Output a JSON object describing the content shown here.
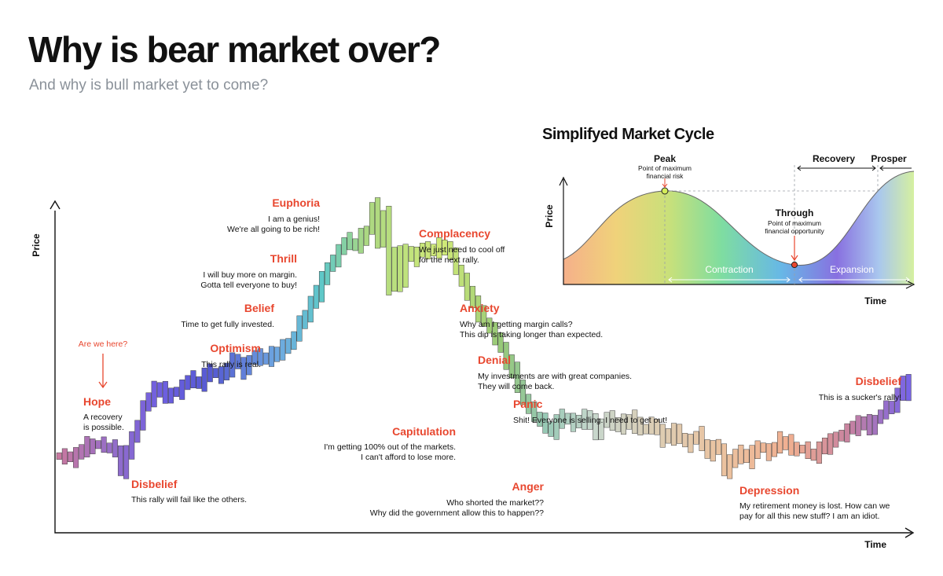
{
  "header": {
    "title": "Why is bear market over?",
    "subtitle": "And why is bull market yet to come?"
  },
  "colors": {
    "accent": "#e8472f",
    "axis": "#111111",
    "subtitle": "#8a9199"
  },
  "chart_data": [
    {
      "type": "bar",
      "style": "candlestick-like gradient bars",
      "xlabel": "Time",
      "ylabel": "Price",
      "grid": false,
      "series_profile": [
        [
          0,
          0.1
        ],
        [
          2,
          0.09
        ],
        [
          4,
          0.12
        ],
        [
          6,
          0.14
        ],
        [
          8,
          0.13
        ],
        [
          10,
          0.12
        ],
        [
          11,
          0.05
        ],
        [
          13,
          0.16
        ],
        [
          15,
          0.27
        ],
        [
          17,
          0.34
        ],
        [
          19,
          0.31
        ],
        [
          21,
          0.33
        ],
        [
          23,
          0.37
        ],
        [
          25,
          0.36
        ],
        [
          27,
          0.4
        ],
        [
          29,
          0.38
        ],
        [
          31,
          0.44
        ],
        [
          33,
          0.41
        ],
        [
          35,
          0.46
        ],
        [
          37,
          0.44
        ],
        [
          39,
          0.47
        ],
        [
          41,
          0.49
        ],
        [
          43,
          0.57
        ],
        [
          45,
          0.64
        ],
        [
          47,
          0.73
        ],
        [
          49,
          0.8
        ],
        [
          51,
          0.86
        ],
        [
          53,
          0.85
        ],
        [
          55,
          0.9
        ],
        [
          56,
          0.99
        ],
        [
          57,
          0.86
        ],
        [
          58,
          0.96
        ],
        [
          59,
          0.7
        ],
        [
          60,
          0.82
        ],
        [
          61,
          0.72
        ],
        [
          62,
          0.83
        ],
        [
          63,
          0.8
        ],
        [
          65,
          0.84
        ],
        [
          67,
          0.83
        ],
        [
          69,
          0.85
        ],
        [
          70,
          0.81
        ],
        [
          72,
          0.72
        ],
        [
          74,
          0.64
        ],
        [
          76,
          0.58
        ],
        [
          78,
          0.52
        ],
        [
          80,
          0.44
        ],
        [
          82,
          0.35
        ],
        [
          84,
          0.26
        ],
        [
          86,
          0.22
        ],
        [
          88,
          0.19
        ],
        [
          90,
          0.24
        ],
        [
          92,
          0.21
        ],
        [
          94,
          0.24
        ],
        [
          96,
          0.18
        ],
        [
          98,
          0.24
        ],
        [
          100,
          0.2
        ],
        [
          102,
          0.23
        ],
        [
          104,
          0.19
        ],
        [
          106,
          0.21
        ],
        [
          108,
          0.16
        ],
        [
          110,
          0.19
        ],
        [
          112,
          0.14
        ],
        [
          114,
          0.17
        ],
        [
          116,
          0.11
        ],
        [
          118,
          0.13
        ],
        [
          119,
          0.04
        ],
        [
          121,
          0.11
        ],
        [
          123,
          0.09
        ],
        [
          125,
          0.13
        ],
        [
          127,
          0.11
        ],
        [
          129,
          0.15
        ],
        [
          131,
          0.13
        ],
        [
          133,
          0.12
        ],
        [
          135,
          0.1
        ],
        [
          137,
          0.14
        ],
        [
          139,
          0.16
        ],
        [
          141,
          0.19
        ],
        [
          143,
          0.22
        ],
        [
          145,
          0.2
        ],
        [
          147,
          0.25
        ],
        [
          149,
          0.28
        ],
        [
          150,
          0.31
        ],
        [
          151,
          0.36
        ],
        [
          152,
          0.33
        ]
      ],
      "phases": [
        {
          "name": "Disbelief",
          "lines": [
            "This rally will fail like the others."
          ]
        },
        {
          "name": "Hope",
          "lines": [
            "A recovery",
            "is possible."
          ]
        },
        {
          "name": "Optimism",
          "lines": [
            "This rally is real."
          ]
        },
        {
          "name": "Belief",
          "lines": [
            "Time to get fully invested."
          ]
        },
        {
          "name": "Thrill",
          "lines": [
            "I will buy more on margin.",
            "Gotta tell everyone to buy!"
          ]
        },
        {
          "name": "Euphoria",
          "lines": [
            "I am a genius!",
            "We're all going to be rich!"
          ]
        },
        {
          "name": "Complacency",
          "lines": [
            "We just need to cool off",
            "for the next rally."
          ]
        },
        {
          "name": "Anxiety",
          "lines": [
            "Why am I getting margin calls?",
            "This dip is taking longer than expected."
          ]
        },
        {
          "name": "Denial",
          "lines": [
            "My investments are with great companies.",
            "They will come back."
          ]
        },
        {
          "name": "Panic",
          "lines": [
            "Shit! Everyone is selling. I need to get out!"
          ]
        },
        {
          "name": "Capitulation",
          "lines": [
            "I'm getting 100% out of the markets.",
            "I can't afford to lose more."
          ]
        },
        {
          "name": "Anger",
          "lines": [
            "Who shorted the market??",
            "Why did the government allow this to happen??"
          ]
        },
        {
          "name": "Depression",
          "lines": [
            "My retirement money is lost. How can we",
            "pay for all this new stuff? I am an idiot."
          ]
        },
        {
          "name": "Disbelief",
          "lines": [
            "This is a sucker's rally!"
          ]
        }
      ],
      "annotation": "Are we here?"
    },
    {
      "type": "area",
      "title": "Simplifyed Market Cycle",
      "xlabel": "Time",
      "ylabel": "Price",
      "peak": {
        "label": "Peak",
        "note": [
          "Point of maximum",
          "financial risk"
        ]
      },
      "trough": {
        "label": "Through",
        "note": [
          "Point of maximum",
          "financial opportunity"
        ]
      },
      "segments": [
        "Contraction",
        "Expansion"
      ],
      "top_segments": [
        "Recovery",
        "Prosper"
      ]
    }
  ]
}
